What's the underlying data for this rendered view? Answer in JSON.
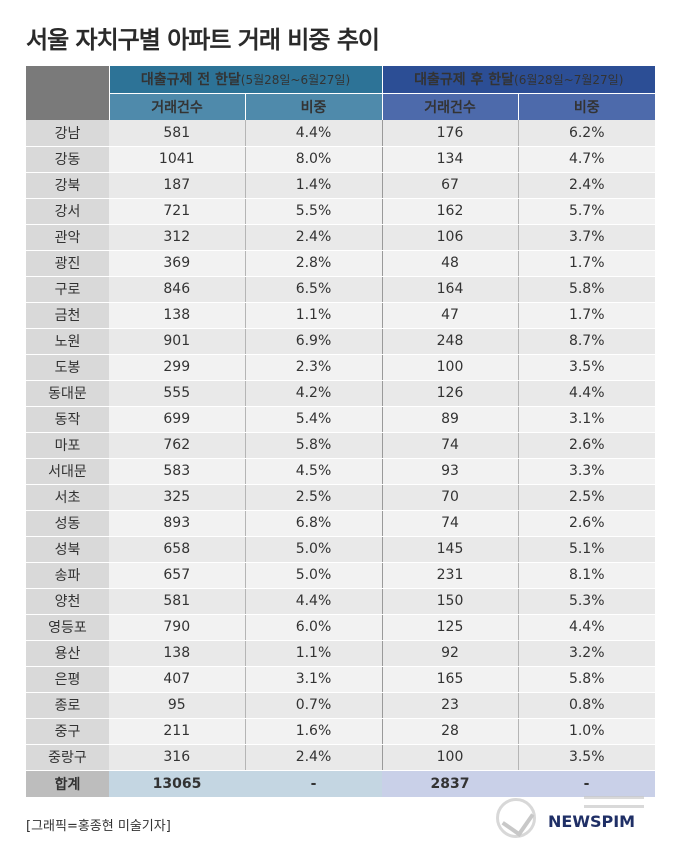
{
  "title": "서울 자치구별 아파트 거래 비중 추이",
  "header": {
    "before_label": "대출규제 전 한달",
    "before_range": "(5월28일~6월27일)",
    "after_label": "대출규제 후 한달",
    "after_range": "(6월28일~7월27일)",
    "col_count": "거래건수",
    "col_share": "비중"
  },
  "rows": [
    {
      "district": "강남",
      "before_count": "581",
      "before_share": "4.4%",
      "after_count": "176",
      "after_share": "6.2%"
    },
    {
      "district": "강동",
      "before_count": "1041",
      "before_share": "8.0%",
      "after_count": "134",
      "after_share": "4.7%"
    },
    {
      "district": "강북",
      "before_count": "187",
      "before_share": "1.4%",
      "after_count": "67",
      "after_share": "2.4%"
    },
    {
      "district": "강서",
      "before_count": "721",
      "before_share": "5.5%",
      "after_count": "162",
      "after_share": "5.7%"
    },
    {
      "district": "관악",
      "before_count": "312",
      "before_share": "2.4%",
      "after_count": "106",
      "after_share": "3.7%"
    },
    {
      "district": "광진",
      "before_count": "369",
      "before_share": "2.8%",
      "after_count": "48",
      "after_share": "1.7%"
    },
    {
      "district": "구로",
      "before_count": "846",
      "before_share": "6.5%",
      "after_count": "164",
      "after_share": "5.8%"
    },
    {
      "district": "금천",
      "before_count": "138",
      "before_share": "1.1%",
      "after_count": "47",
      "after_share": "1.7%"
    },
    {
      "district": "노원",
      "before_count": "901",
      "before_share": "6.9%",
      "after_count": "248",
      "after_share": "8.7%"
    },
    {
      "district": "도봉",
      "before_count": "299",
      "before_share": "2.3%",
      "after_count": "100",
      "after_share": "3.5%"
    },
    {
      "district": "동대문",
      "before_count": "555",
      "before_share": "4.2%",
      "after_count": "126",
      "after_share": "4.4%"
    },
    {
      "district": "동작",
      "before_count": "699",
      "before_share": "5.4%",
      "after_count": "89",
      "after_share": "3.1%"
    },
    {
      "district": "마포",
      "before_count": "762",
      "before_share": "5.8%",
      "after_count": "74",
      "after_share": "2.6%"
    },
    {
      "district": "서대문",
      "before_count": "583",
      "before_share": "4.5%",
      "after_count": "93",
      "after_share": "3.3%"
    },
    {
      "district": "서초",
      "before_count": "325",
      "before_share": "2.5%",
      "after_count": "70",
      "after_share": "2.5%"
    },
    {
      "district": "성동",
      "before_count": "893",
      "before_share": "6.8%",
      "after_count": "74",
      "after_share": "2.6%"
    },
    {
      "district": "성북",
      "before_count": "658",
      "before_share": "5.0%",
      "after_count": "145",
      "after_share": "5.1%"
    },
    {
      "district": "송파",
      "before_count": "657",
      "before_share": "5.0%",
      "after_count": "231",
      "after_share": "8.1%"
    },
    {
      "district": "양천",
      "before_count": "581",
      "before_share": "4.4%",
      "after_count": "150",
      "after_share": "5.3%"
    },
    {
      "district": "영등포",
      "before_count": "790",
      "before_share": "6.0%",
      "after_count": "125",
      "after_share": "4.4%"
    },
    {
      "district": "용산",
      "before_count": "138",
      "before_share": "1.1%",
      "after_count": "92",
      "after_share": "3.2%"
    },
    {
      "district": "은평",
      "before_count": "407",
      "before_share": "3.1%",
      "after_count": "165",
      "after_share": "5.8%"
    },
    {
      "district": "종로",
      "before_count": "95",
      "before_share": "0.7%",
      "after_count": "23",
      "after_share": "0.8%"
    },
    {
      "district": "중구",
      "before_count": "211",
      "before_share": "1.6%",
      "after_count": "28",
      "after_share": "1.0%"
    },
    {
      "district": "중랑구",
      "before_count": "316",
      "before_share": "2.4%",
      "after_count": "100",
      "after_share": "3.5%"
    }
  ],
  "total": {
    "label": "합계",
    "before_count": "13065",
    "before_share": "-",
    "after_count": "2837",
    "after_share": "-"
  },
  "credit": "[그래픽=홍종현 미술기자]",
  "logo": {
    "icon": "newspim-seal-icon",
    "text": "NEWSPIM"
  }
}
